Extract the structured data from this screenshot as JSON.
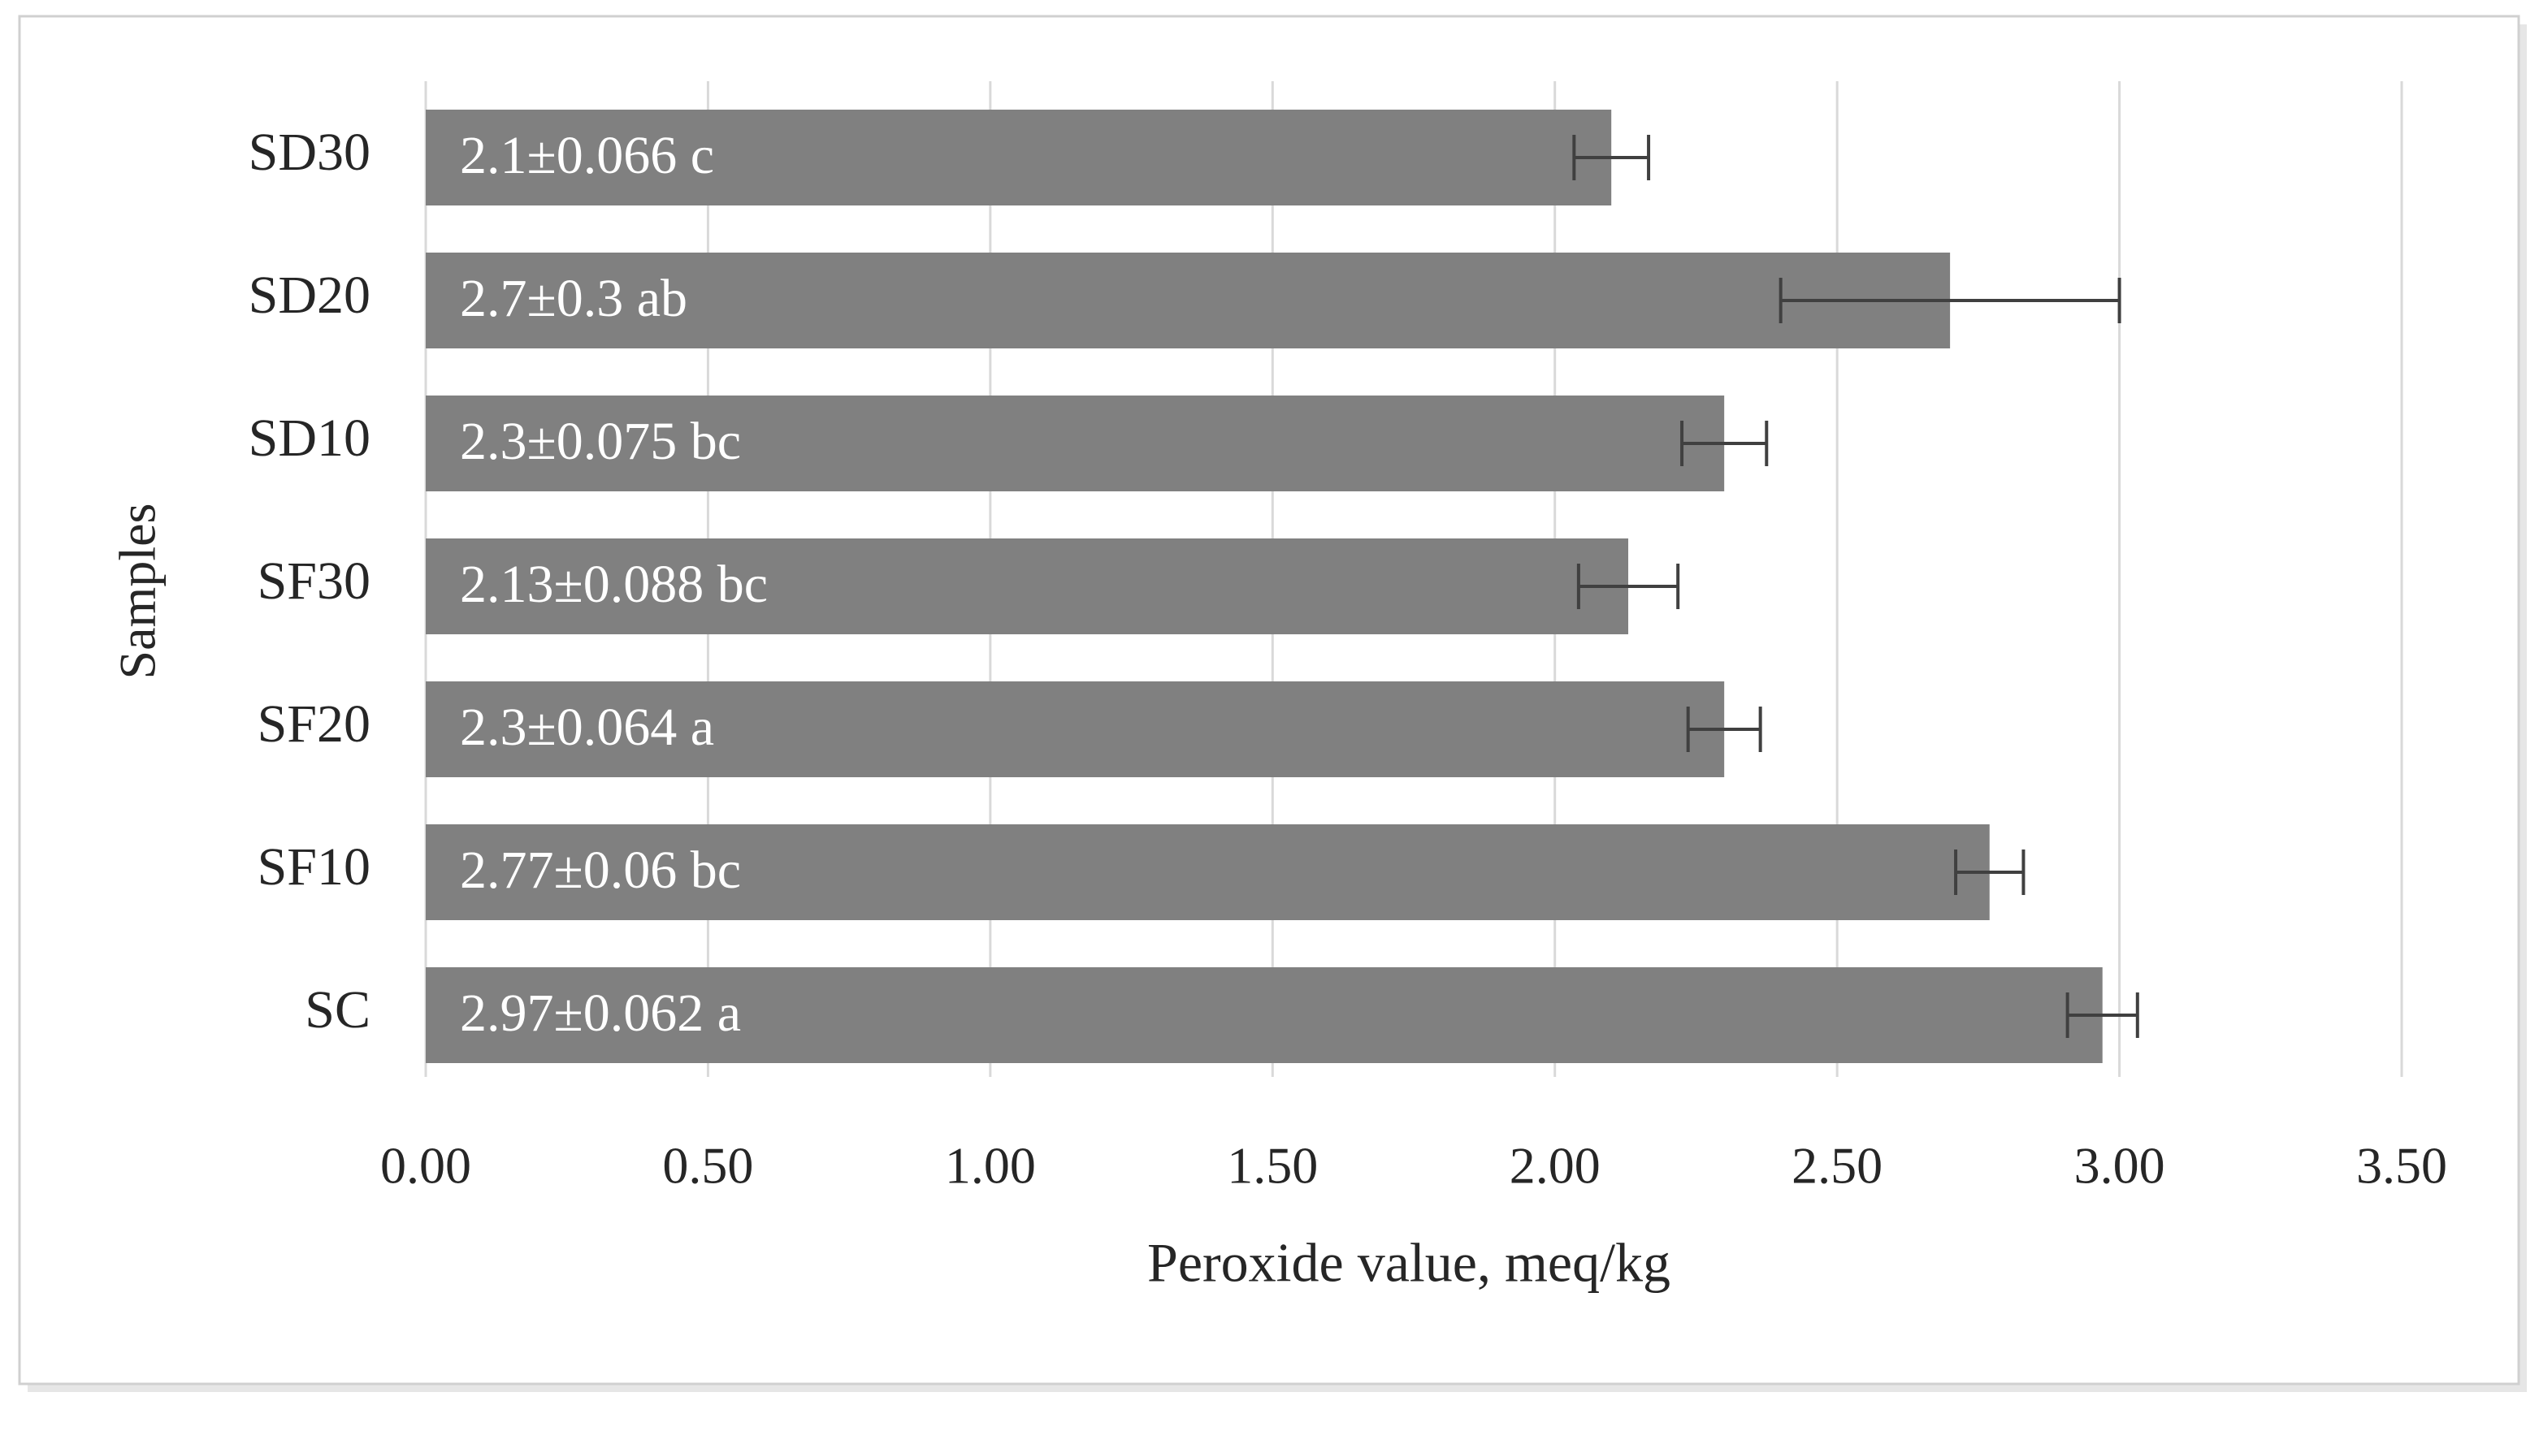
{
  "chart_data": {
    "type": "bar",
    "orientation": "horizontal",
    "x_label": "Peroxide value, meq/kg",
    "y_label": "Samples",
    "categories": [
      "SD30",
      "SD20",
      "SD10",
      "SF30",
      "SF20",
      "SF10",
      "SC"
    ],
    "values": [
      2.1,
      2.7,
      2.3,
      2.13,
      2.3,
      2.77,
      2.97
    ],
    "errors": [
      0.066,
      0.3,
      0.075,
      0.088,
      0.064,
      0.06,
      0.062
    ],
    "value_labels": [
      "2.1±0.066 c",
      "2.7±0.3 ab",
      "2.3±0.075 bc",
      "2.13±0.088 bc",
      "2.3±0.064 a",
      "2.77±0.06 bc",
      "2.97±0.062 a"
    ],
    "color": "#808080",
    "xlim": [
      0,
      3.5
    ],
    "xticks": [
      {
        "value": 0,
        "label": "0.00"
      },
      {
        "value": 0.5,
        "label": "0.50"
      },
      {
        "value": 1,
        "label": "1.00"
      },
      {
        "value": 1.5,
        "label": "1.50"
      },
      {
        "value": 2,
        "label": "2.00"
      },
      {
        "value": 2.5,
        "label": "2.50"
      },
      {
        "value": 3,
        "label": "3.00"
      },
      {
        "value": 3.5,
        "label": "3.50"
      }
    ],
    "grid": true
  }
}
